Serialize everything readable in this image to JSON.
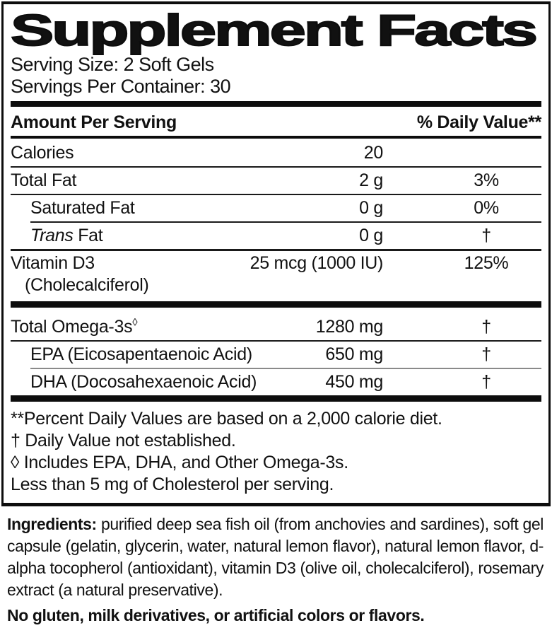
{
  "title": "Supplement Facts",
  "serving": {
    "size": "Serving Size: 2 Soft Gels",
    "per_container": "Servings Per Container: 30"
  },
  "table": {
    "header": {
      "amount_col": "Amount Per Serving",
      "dv_col": "% Daily Value**"
    },
    "main_rows": [
      {
        "name": "Calories",
        "amount": "20",
        "dv": ""
      },
      {
        "name": "Total Fat",
        "amount": "2 g",
        "dv": "3%",
        "sep": "full"
      },
      {
        "name": "Saturated Fat",
        "amount": "0 g",
        "dv": "0%",
        "sep": "full",
        "indent": true
      },
      {
        "name_italic": "Trans",
        "name": " Fat",
        "amount": "0 g",
        "dv": "†",
        "sep": "indent",
        "indent": true
      },
      {
        "name": "Vitamin D3",
        "name_line2": "(Cholecalciferol)",
        "amount": "25 mcg (1000 IU)",
        "dv": "125%",
        "sep": "medium",
        "tall": true
      }
    ],
    "omega_rows": [
      {
        "name": "Total Omega-3s",
        "sup": "◊",
        "amount": "1280 mg",
        "dv": "†",
        "pad": true
      },
      {
        "name": "EPA (Eicosapentaenoic Acid)",
        "amount": "650 mg",
        "dv": "†",
        "sep": "full",
        "indent": true
      },
      {
        "name": "DHA (Docosahexaenoic Acid)",
        "amount": "450 mg",
        "dv": "†",
        "sep": "gray",
        "indent": true
      }
    ]
  },
  "footnotes": [
    "**Percent Daily Values are based on a 2,000 calorie diet.",
    "† Daily Value not established.",
    "◊ Includes EPA, DHA, and Other Omega-3s.",
    "Less than 5 mg of Cholesterol per serving."
  ],
  "ingredients": {
    "label": "Ingredients:",
    "text": " purified deep sea fish oil (from anchovies and sardines), soft gel capsule (gelatin, glycerin, water, natural lemon flavor), natural lemon flavor, d-alpha tocopherol (antioxidant), vitamin D3 (olive oil, cholecalciferol), rosemary extract (a natural preservative)."
  },
  "allergen_statement": "No gluten, milk derivatives, or artificial colors or flavors.",
  "colors": {
    "text": "#111111",
    "background": "#ffffff",
    "divider": "#0d0d0d"
  }
}
